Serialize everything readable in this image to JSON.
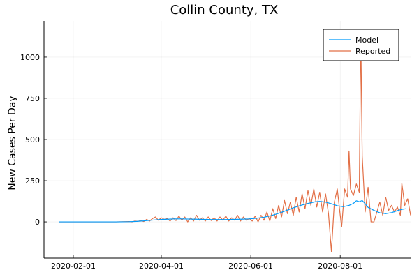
{
  "chart_data": {
    "type": "line",
    "title": "Collin County, TX",
    "xlabel": "",
    "ylabel": "New Cases Per Day",
    "x_type": "date",
    "xlim": [
      "2020-01-12",
      "2020-09-18"
    ],
    "ylim": [
      -220,
      1220
    ],
    "x_ticks": [
      "2020-02-01",
      "2020-04-01",
      "2020-06-01",
      "2020-08-01"
    ],
    "y_ticks": [
      0,
      250,
      500,
      750,
      1000
    ],
    "grid": true,
    "legend": {
      "position": "top-right"
    },
    "series": [
      {
        "name": "Model",
        "color": "#009AFA",
        "points": [
          [
            "2020-01-22",
            0
          ],
          [
            "2020-03-01",
            0
          ],
          [
            "2020-03-10",
            1
          ],
          [
            "2020-03-15",
            3
          ],
          [
            "2020-03-20",
            6
          ],
          [
            "2020-03-25",
            10
          ],
          [
            "2020-03-31",
            14
          ],
          [
            "2020-04-05",
            16
          ],
          [
            "2020-04-10",
            18
          ],
          [
            "2020-04-15",
            18
          ],
          [
            "2020-04-20",
            17
          ],
          [
            "2020-04-25",
            16
          ],
          [
            "2020-04-30",
            15
          ],
          [
            "2020-05-05",
            14
          ],
          [
            "2020-05-10",
            14
          ],
          [
            "2020-05-15",
            14
          ],
          [
            "2020-05-20",
            15
          ],
          [
            "2020-05-25",
            16
          ],
          [
            "2020-05-31",
            18
          ],
          [
            "2020-06-05",
            22
          ],
          [
            "2020-06-10",
            28
          ],
          [
            "2020-06-15",
            38
          ],
          [
            "2020-06-20",
            52
          ],
          [
            "2020-06-25",
            68
          ],
          [
            "2020-06-30",
            85
          ],
          [
            "2020-07-05",
            100
          ],
          [
            "2020-07-10",
            112
          ],
          [
            "2020-07-15",
            122
          ],
          [
            "2020-07-18",
            124
          ],
          [
            "2020-07-22",
            120
          ],
          [
            "2020-07-26",
            110
          ],
          [
            "2020-07-30",
            98
          ],
          [
            "2020-08-03",
            92
          ],
          [
            "2020-08-07",
            100
          ],
          [
            "2020-08-10",
            112
          ],
          [
            "2020-08-12",
            128
          ],
          [
            "2020-08-14",
            122
          ],
          [
            "2020-08-16",
            130
          ],
          [
            "2020-08-18",
            110
          ],
          [
            "2020-08-20",
            88
          ],
          [
            "2020-08-24",
            70
          ],
          [
            "2020-08-28",
            55
          ],
          [
            "2020-09-01",
            50
          ],
          [
            "2020-09-05",
            56
          ],
          [
            "2020-09-09",
            68
          ],
          [
            "2020-09-12",
            76
          ],
          [
            "2020-09-15",
            80
          ]
        ]
      },
      {
        "name": "Reported",
        "color": "#E26F46",
        "points": [
          [
            "2020-01-22",
            0
          ],
          [
            "2020-03-01",
            0
          ],
          [
            "2020-03-10",
            2
          ],
          [
            "2020-03-12",
            0
          ],
          [
            "2020-03-14",
            5
          ],
          [
            "2020-03-16",
            3
          ],
          [
            "2020-03-18",
            8
          ],
          [
            "2020-03-20",
            2
          ],
          [
            "2020-03-22",
            15
          ],
          [
            "2020-03-24",
            5
          ],
          [
            "2020-03-26",
            20
          ],
          [
            "2020-03-28",
            30
          ],
          [
            "2020-03-30",
            10
          ],
          [
            "2020-04-01",
            25
          ],
          [
            "2020-04-03",
            15
          ],
          [
            "2020-04-05",
            20
          ],
          [
            "2020-04-07",
            5
          ],
          [
            "2020-04-09",
            25
          ],
          [
            "2020-04-11",
            8
          ],
          [
            "2020-04-13",
            35
          ],
          [
            "2020-04-15",
            10
          ],
          [
            "2020-04-17",
            30
          ],
          [
            "2020-04-19",
            0
          ],
          [
            "2020-04-21",
            25
          ],
          [
            "2020-04-23",
            5
          ],
          [
            "2020-04-25",
            40
          ],
          [
            "2020-04-27",
            10
          ],
          [
            "2020-04-29",
            25
          ],
          [
            "2020-05-01",
            5
          ],
          [
            "2020-05-03",
            30
          ],
          [
            "2020-05-05",
            8
          ],
          [
            "2020-05-07",
            25
          ],
          [
            "2020-05-09",
            5
          ],
          [
            "2020-05-11",
            30
          ],
          [
            "2020-05-13",
            10
          ],
          [
            "2020-05-15",
            35
          ],
          [
            "2020-05-17",
            5
          ],
          [
            "2020-05-19",
            25
          ],
          [
            "2020-05-21",
            10
          ],
          [
            "2020-05-23",
            40
          ],
          [
            "2020-05-25",
            5
          ],
          [
            "2020-05-27",
            30
          ],
          [
            "2020-05-29",
            10
          ],
          [
            "2020-05-31",
            20
          ],
          [
            "2020-06-02",
            5
          ],
          [
            "2020-06-04",
            35
          ],
          [
            "2020-06-06",
            0
          ],
          [
            "2020-06-08",
            40
          ],
          [
            "2020-06-10",
            10
          ],
          [
            "2020-06-12",
            60
          ],
          [
            "2020-06-14",
            5
          ],
          [
            "2020-06-16",
            80
          ],
          [
            "2020-06-18",
            20
          ],
          [
            "2020-06-20",
            100
          ],
          [
            "2020-06-22",
            30
          ],
          [
            "2020-06-24",
            130
          ],
          [
            "2020-06-26",
            50
          ],
          [
            "2020-06-28",
            120
          ],
          [
            "2020-06-30",
            40
          ],
          [
            "2020-07-02",
            150
          ],
          [
            "2020-07-04",
            60
          ],
          [
            "2020-07-06",
            170
          ],
          [
            "2020-07-08",
            80
          ],
          [
            "2020-07-10",
            190
          ],
          [
            "2020-07-12",
            100
          ],
          [
            "2020-07-14",
            200
          ],
          [
            "2020-07-16",
            90
          ],
          [
            "2020-07-18",
            180
          ],
          [
            "2020-07-20",
            60
          ],
          [
            "2020-07-22",
            170
          ],
          [
            "2020-07-24",
            50
          ],
          [
            "2020-07-26",
            -180
          ],
          [
            "2020-07-28",
            120
          ],
          [
            "2020-07-30",
            200
          ],
          [
            "2020-08-01",
            40
          ],
          [
            "2020-08-02",
            -30
          ],
          [
            "2020-08-04",
            200
          ],
          [
            "2020-08-06",
            150
          ],
          [
            "2020-08-07",
            430
          ],
          [
            "2020-08-08",
            200
          ],
          [
            "2020-08-10",
            160
          ],
          [
            "2020-08-12",
            230
          ],
          [
            "2020-08-14",
            180
          ],
          [
            "2020-08-15",
            1170
          ],
          [
            "2020-08-16",
            400
          ],
          [
            "2020-08-18",
            60
          ],
          [
            "2020-08-20",
            210
          ],
          [
            "2020-08-22",
            0
          ],
          [
            "2020-08-24",
            0
          ],
          [
            "2020-08-26",
            60
          ],
          [
            "2020-08-28",
            120
          ],
          [
            "2020-08-30",
            40
          ],
          [
            "2020-09-01",
            150
          ],
          [
            "2020-09-03",
            70
          ],
          [
            "2020-09-05",
            100
          ],
          [
            "2020-09-07",
            60
          ],
          [
            "2020-09-09",
            90
          ],
          [
            "2020-09-11",
            40
          ],
          [
            "2020-09-12",
            235
          ],
          [
            "2020-09-14",
            100
          ],
          [
            "2020-09-16",
            140
          ],
          [
            "2020-09-18",
            40
          ]
        ]
      }
    ]
  }
}
